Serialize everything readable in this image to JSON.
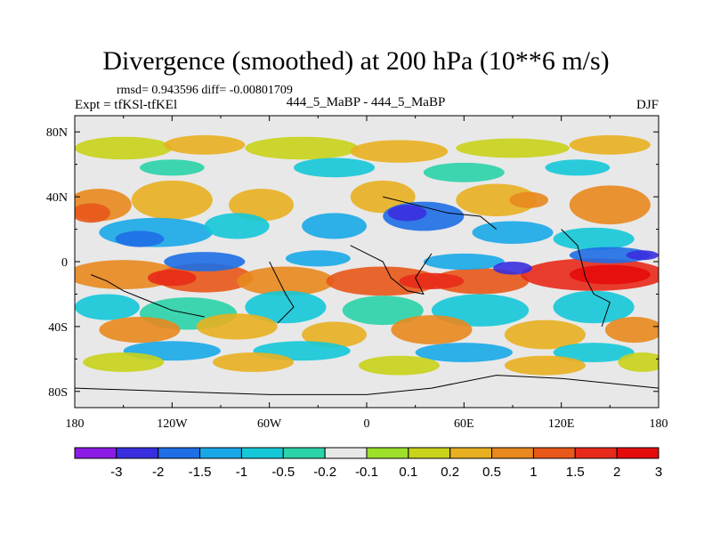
{
  "chart_data": {
    "type": "heatmap",
    "title": "Divergence (smoothed) at 200 hPa (10**6 m/s)",
    "stats_line": "rmsd= 0.943596  diff= -0.00801709",
    "experiment_label": "Expt = tfKSl-tfKEl",
    "center_label": "444_5_MaBP - 444_5_MaBP",
    "season": "DJF",
    "x_range": [
      -180,
      180
    ],
    "y_range": [
      -90,
      90
    ],
    "x_ticks": [
      {
        "value": -180,
        "label": "180"
      },
      {
        "value": -120,
        "label": "120W"
      },
      {
        "value": -60,
        "label": "60W"
      },
      {
        "value": 0,
        "label": "0"
      },
      {
        "value": 60,
        "label": "60E"
      },
      {
        "value": 120,
        "label": "120E"
      },
      {
        "value": 180,
        "label": "180"
      }
    ],
    "y_ticks": [
      {
        "value": 80,
        "label": "80N"
      },
      {
        "value": 40,
        "label": "40N"
      },
      {
        "value": 0,
        "label": "0"
      },
      {
        "value": -40,
        "label": "40S"
      },
      {
        "value": -80,
        "label": "80S"
      }
    ],
    "colorbar": {
      "boundaries": [
        "-3",
        "-2",
        "-1.5",
        "-1",
        "-0.5",
        "-0.2",
        "-0.1",
        "0.1",
        "0.2",
        "0.5",
        "1",
        "1.5",
        "2",
        "3"
      ],
      "colors": [
        "#8c1be6",
        "#3a2fe0",
        "#1e6ee6",
        "#18a8e8",
        "#14c8d8",
        "#2ad3a8",
        "#e8e8e8",
        "#9ce02a",
        "#c9d21a",
        "#e8b020",
        "#e8881e",
        "#e8581a",
        "#e82a1a",
        "#e60b0b"
      ]
    }
  }
}
